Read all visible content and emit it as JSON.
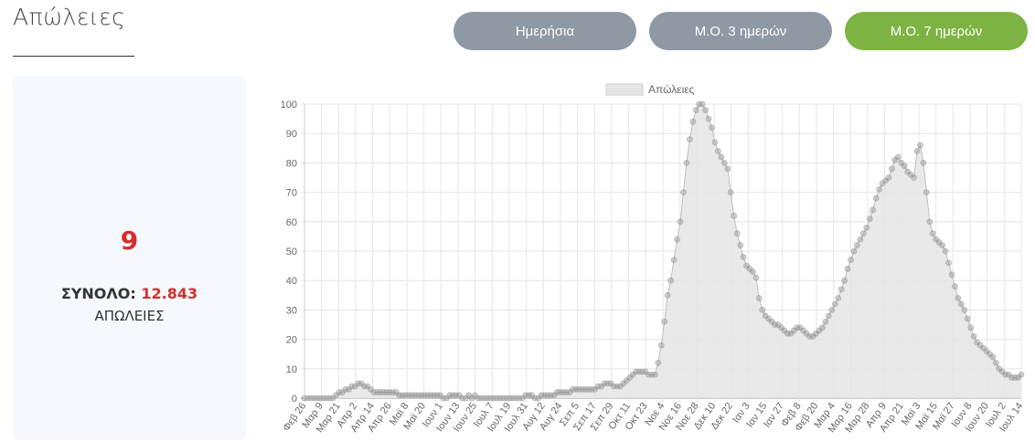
{
  "header": {
    "title": "Απώλειες"
  },
  "buttons": [
    {
      "label": "Ημερήσια",
      "active": false
    },
    {
      "label": "Μ.Ο. 3 ημερών",
      "active": false
    },
    {
      "label": "Μ.Ο. 7 ημερών",
      "active": true
    }
  ],
  "colors": {
    "active_button": "#7cb342",
    "inactive_button": "#8e99a4",
    "highlight": "#d32f2f",
    "series_fill": "#e5e5e5",
    "series_point": "#999999"
  },
  "summary": {
    "value": "9",
    "total_label": "ΣΥΝΟΛΟ:",
    "total_value": "12.843",
    "caption": "ΑΠΩΛΕΙΕΣ"
  },
  "chart_data": {
    "type": "area",
    "legend": [
      "Απώλειες"
    ],
    "legend_position": "top",
    "grid": true,
    "ylim": [
      0,
      100
    ],
    "yticks": [
      0,
      10,
      20,
      30,
      40,
      50,
      60,
      70,
      80,
      90,
      100
    ],
    "xticks": [
      "Φεβ 26",
      "Μαρ 9",
      "Μαρ 21",
      "Απρ 2",
      "Απρ 14",
      "Απρ 26",
      "Μαϊ 8",
      "Μαϊ 20",
      "Ιουν 1",
      "Ιουν 13",
      "Ιουν 25",
      "Ιουλ 7",
      "Ιουλ 19",
      "Ιουλ 31",
      "Αυγ 12",
      "Αυγ 24",
      "Σεπ 5",
      "Σεπ 17",
      "Σεπ 29",
      "Οκτ 11",
      "Οκτ 23",
      "Νοε 4",
      "Νοε 16",
      "Νοε 28",
      "Δεκ 10",
      "Δεκ 22",
      "Ιαν 3",
      "Ιαν 15",
      "Ιαν 27",
      "Φεβ 8",
      "Φεβ 20",
      "Μαρ 4",
      "Μαρ 16",
      "Μαρ 28",
      "Απρ 9",
      "Απρ 21",
      "Μαϊ 3",
      "Μαϊ 15",
      "Μαϊ 27",
      "Ιουν 8",
      "Ιουν 20",
      "Ιουλ 2",
      "Ιουλ 14"
    ],
    "series": [
      {
        "name": "Απώλειες",
        "values": [
          0,
          0,
          0,
          0,
          0,
          0,
          0,
          0,
          0,
          0,
          1,
          2,
          2,
          3,
          3,
          4,
          4,
          5,
          5,
          4,
          4,
          3,
          2,
          2,
          2,
          2,
          2,
          2,
          2,
          2,
          1,
          1,
          1,
          1,
          1,
          1,
          1,
          1,
          1,
          1,
          1,
          1,
          1,
          1,
          0,
          0,
          1,
          1,
          1,
          1,
          0,
          0,
          1,
          0,
          1,
          0,
          0,
          0,
          0,
          0,
          0,
          0,
          0,
          0,
          0,
          0,
          0,
          0,
          0,
          0,
          1,
          1,
          1,
          0,
          0,
          1,
          1,
          1,
          1,
          1,
          2,
          2,
          2,
          2,
          2,
          3,
          3,
          3,
          3,
          3,
          3,
          3,
          3,
          4,
          4,
          5,
          5,
          5,
          4,
          4,
          4,
          5,
          6,
          7,
          8,
          9,
          9,
          9,
          9,
          8,
          8,
          8,
          12,
          18,
          26,
          35,
          40,
          47,
          54,
          60,
          70,
          80,
          88,
          94,
          98,
          100,
          100,
          98,
          95,
          92,
          87,
          84,
          82,
          80,
          78,
          70,
          62,
          56,
          52,
          48,
          45,
          44,
          43,
          41,
          34,
          30,
          28,
          27,
          26,
          25,
          25,
          24,
          23,
          22,
          22,
          23,
          24,
          24,
          23,
          22,
          21,
          21,
          22,
          23,
          24,
          26,
          28,
          30,
          32,
          34,
          37,
          40,
          44,
          47,
          50,
          52,
          54,
          56,
          58,
          61,
          64,
          68,
          71,
          73,
          74,
          75,
          78,
          81,
          82,
          80,
          79,
          77,
          76,
          75,
          84,
          86,
          80,
          70,
          60,
          56,
          54,
          53,
          52,
          50,
          46,
          42,
          38,
          34,
          32,
          30,
          27,
          24,
          21,
          19,
          18,
          17,
          16,
          15,
          14,
          12,
          10,
          9,
          8,
          8,
          7,
          7,
          7,
          8
        ]
      }
    ]
  }
}
